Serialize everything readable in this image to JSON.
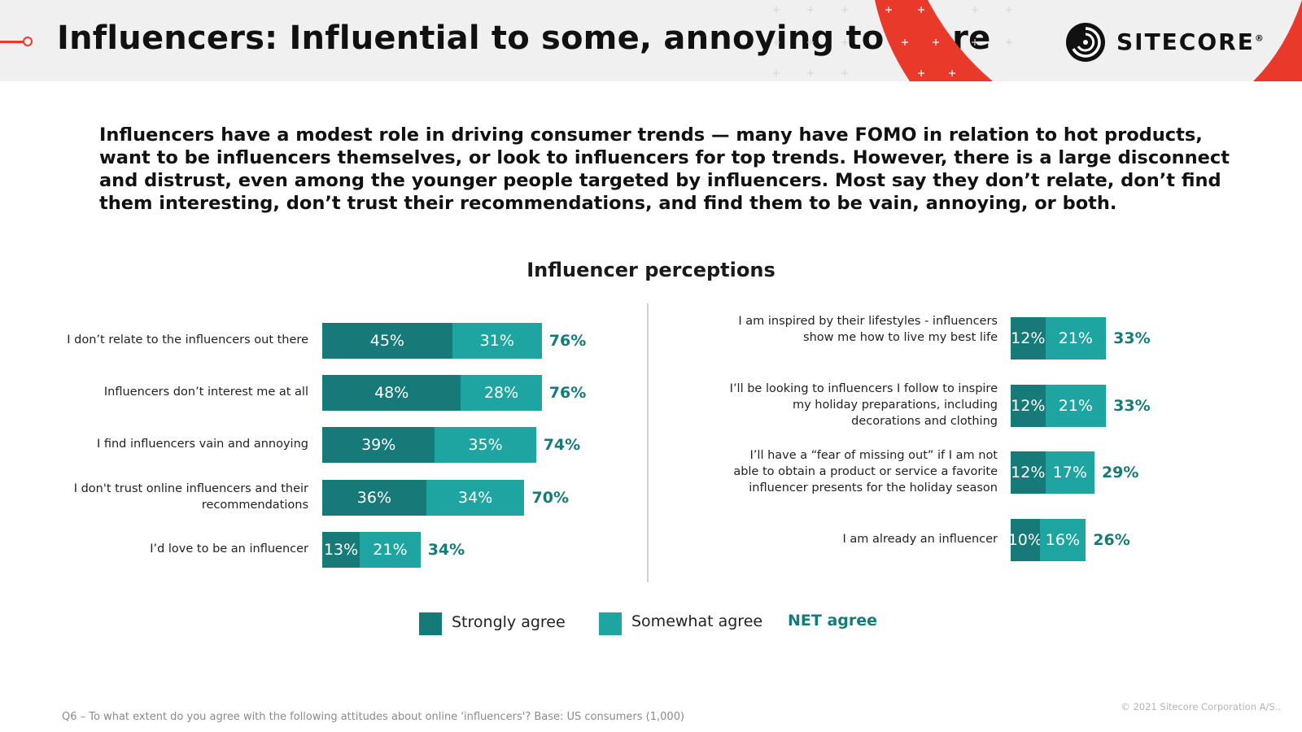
{
  "header": {
    "title": "Influencers: Influential to some, annoying to more",
    "logo_text": "SITECORE",
    "logo_mark": "®"
  },
  "intro": "Influencers have a modest role in driving consumer trends — many have FOMO in relation to hot products, want to be influencers themselves, or look to influencers for top trends. However, there is a large disconnect and distrust, even among the younger people targeted by influencers. Most say they don’t relate, don’t find them interesting, don’t trust their recommendations, and find them to be vain, annoying, or both.",
  "colors": {
    "strongly": "#167a79",
    "somewhat": "#1ea5a2",
    "net": "#167a79",
    "accent": "#e8392b"
  },
  "chart_data": {
    "type": "bar",
    "orientation": "horizontal",
    "stacked": true,
    "title": "Influencer perceptions",
    "unit": "%",
    "series_names": [
      "Strongly agree",
      "Somewhat agree"
    ],
    "net_label": "NET agree",
    "groups": [
      {
        "side": "left",
        "items": [
          {
            "label": "I don’t relate to the influencers out there",
            "strongly": 45,
            "somewhat": 31,
            "net": 76
          },
          {
            "label": "Influencers don’t interest me at all",
            "strongly": 48,
            "somewhat": 28,
            "net": 76
          },
          {
            "label": "I find influencers vain and annoying",
            "strongly": 39,
            "somewhat": 35,
            "net": 74
          },
          {
            "label": "I don't trust online influencers and their recommendations",
            "strongly": 36,
            "somewhat": 34,
            "net": 70
          },
          {
            "label": "I’d love to be an influencer",
            "strongly": 13,
            "somewhat": 21,
            "net": 34
          }
        ]
      },
      {
        "side": "right",
        "items": [
          {
            "label": "I am inspired by their lifestyles - influencers show me how to live my best life",
            "strongly": 12,
            "somewhat": 21,
            "net": 33
          },
          {
            "label": "I’ll be looking to influencers I follow to inspire my holiday preparations, including decorations and clothing",
            "strongly": 12,
            "somewhat": 21,
            "net": 33
          },
          {
            "label": "I’ll have a “fear of missing out” if I am not able to obtain a product or service a favorite influencer presents for the holiday season",
            "strongly": 12,
            "somewhat": 17,
            "net": 29
          },
          {
            "label": "I am already an influencer",
            "strongly": 10,
            "somewhat": 16,
            "net": 26
          }
        ]
      }
    ]
  },
  "footnote": "Q6 – To what extent do you agree with the following attitudes about online 'influencers'? Base: US consumers (1,000)",
  "copyright": "© 2021 Sitecore Corporation A/S.."
}
